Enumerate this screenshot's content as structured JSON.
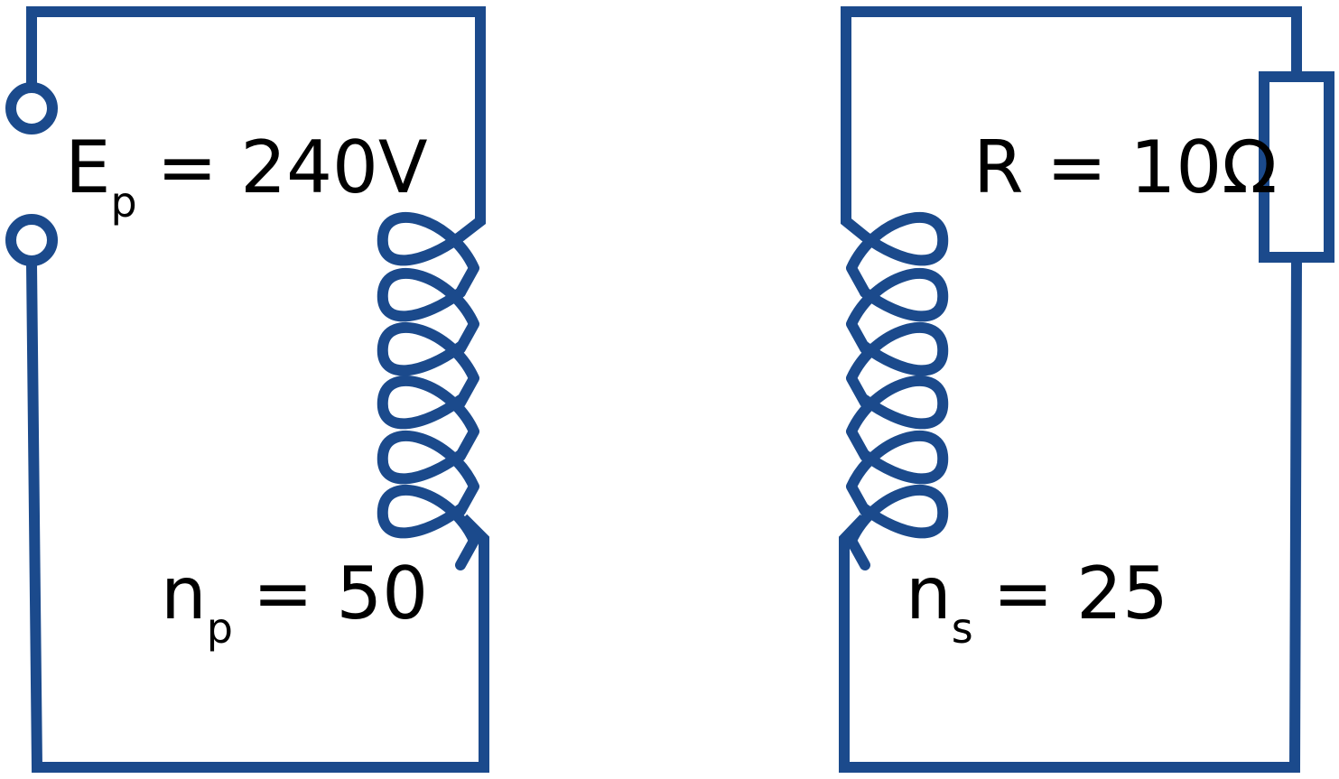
{
  "colors": {
    "circuit": "#1b4a8c",
    "text": "#000000",
    "background": "#ffffff"
  },
  "primary": {
    "voltage": {
      "symbol": "E",
      "subscript": "p",
      "value": "= 240V"
    },
    "turns": {
      "symbol": "n",
      "subscript": "p",
      "value": "= 50"
    }
  },
  "secondary": {
    "resistance": {
      "text": "R = 10Ω"
    },
    "turns": {
      "symbol": "n",
      "subscript": "s",
      "value": "= 25"
    }
  }
}
